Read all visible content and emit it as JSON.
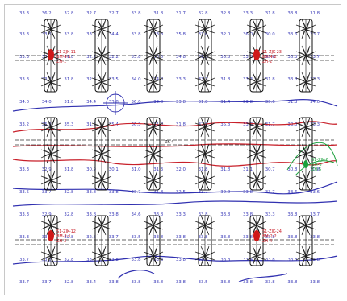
{
  "colors": {
    "contour_blue": "#3030b0",
    "profile_red": "#c8202a",
    "highlight_green": "#19a03c",
    "frame_gray": "#c8c8c8",
    "structure_black": "#111111"
  },
  "elevation_rows": [
    [
      "33.3",
      "36.2",
      "32.8",
      "32.7",
      "32.7",
      "33.8",
      "31.8",
      "31.7",
      "32.8",
      "32.8",
      "33.3",
      "31.8",
      "33.8",
      "31.8"
    ],
    [
      "33.3",
      "33.5",
      "33.8",
      "33.8",
      "34.4",
      "33.8",
      "33.8",
      "35.8",
      "33.6",
      "32.0",
      "36.0",
      "30.0",
      "33.6",
      "33.7"
    ],
    [
      "33.3",
      "33.2",
      "31.8",
      "32.2",
      "32.2",
      "33.8",
      "30.0",
      "34.8",
      "31.8",
      "35.8",
      "33.8",
      "33.8",
      "36.0",
      "33.7"
    ],
    [
      "33.3",
      "33.2",
      "31.8",
      "32.5",
      "33.5",
      "34.0",
      "34.8",
      "33.3",
      "33.3",
      "31.8",
      "33.3",
      "31.8",
      "33.8",
      "33.3"
    ],
    [
      "34.0",
      "34.0",
      "31.8",
      "34.4",
      "33.8",
      "36.0",
      "33.8",
      "33.8",
      "31.8",
      "31.4",
      "33.8",
      "33.6",
      "31.3",
      "34.0"
    ],
    [
      "33.2",
      "35.9",
      "35.3",
      "31.5",
      "35.4",
      "36.3",
      "31.8",
      "31.8",
      "32.8",
      "35.8",
      "33.8",
      "31.7",
      "33.0",
      "33.3"
    ],
    [
      "33.3",
      "32.9",
      "31.8",
      "30.9",
      "30.1",
      "31.0",
      "31.3",
      "32.0",
      "31.8",
      "31.8",
      "31.1",
      "30.7",
      "30.8",
      "30.8"
    ],
    [
      "33.5",
      "33.7",
      "32.8",
      "33.8",
      "33.8",
      "33.7",
      "31.8",
      "32.5",
      "33.7",
      "32.0",
      "33.8",
      "33.7",
      "33.6",
      "33.6"
    ],
    [
      "33.3",
      "32.9",
      "32.8",
      "33.8",
      "33.8",
      "34.6",
      "33.8",
      "33.3",
      "33.8",
      "33.8",
      "33.8",
      "33.3",
      "33.8",
      "33.7"
    ],
    [
      "33.3",
      "33.0",
      "32.8",
      "32.8",
      "33.7",
      "33.5",
      "33.8",
      "33.8",
      "33.8",
      "33.8",
      "33.8",
      "33.8",
      "33.8",
      "33.8"
    ],
    [
      "33.7",
      "33.8",
      "32.8",
      "33.8",
      "33.8",
      "33.8",
      "33.8",
      "33.8",
      "33.8",
      "33.8",
      "33.4",
      "33.8",
      "33.8",
      "33.8"
    ],
    [
      "33.7",
      "33.7",
      "32.8",
      "33.4",
      "33.8",
      "33.8",
      "33.8",
      "33.8",
      "33.5",
      "33.8",
      "33.8",
      "33.8",
      "33.8",
      "33.8"
    ]
  ],
  "tags": {
    "red_top_left": [
      "S1-ZJK-11",
      "BM-4-1",
      "ZH-1"
    ],
    "red_top_right": [
      "S1-ZJK-23",
      "BM-4-2",
      "ZH-2"
    ],
    "red_bottom_left": [
      "S1-ZJK-12",
      "BM-2-1",
      "ZH-3"
    ],
    "red_bottom_right": [
      "S1-ZJK-24",
      "BM-2-2",
      "ZH-4"
    ],
    "green_mid_right": [
      "S1-ZJK-6",
      "BM-5",
      "ZH-5"
    ],
    "black_mid": "ZK-4"
  }
}
